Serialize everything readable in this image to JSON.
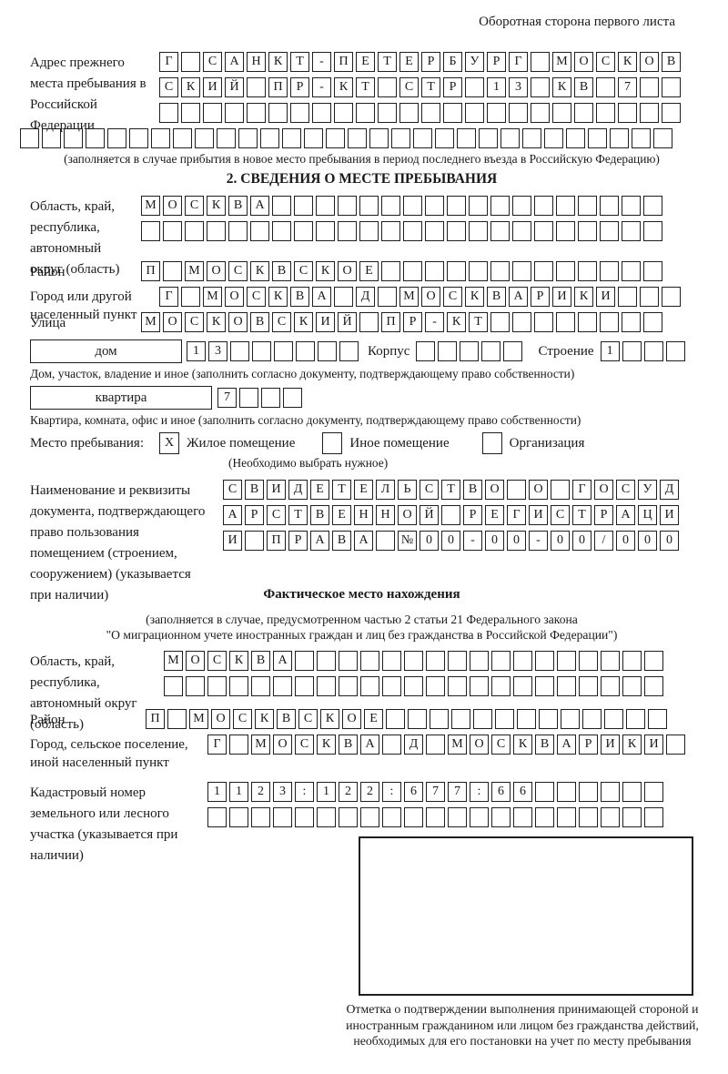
{
  "ink_color": "#1a1a1a",
  "header": {
    "back_side_note": "Оборотная сторона первого листа"
  },
  "prev_address": {
    "label": "Адрес прежнего места пребывания в Российской Федерации",
    "rows": [
      {
        "cells": "Г САНКТ-ПЕТЕРБУРГ МОСКОВ",
        "count": 24
      },
      {
        "cells": "СКИЙ ПР-КТ СТР 13 КВ 7",
        "count": 24
      },
      {
        "cells": "",
        "count": 24
      },
      {
        "cells": "",
        "count": 30
      }
    ],
    "note": "(заполняется в случае прибытия в новое место пребывания в период последнего въезда в Российскую Федерацию)"
  },
  "section2": {
    "title": "2. СВЕДЕНИЯ О МЕСТЕ ПРЕБЫВАНИЯ",
    "region": {
      "label": "Область, край, республика, автономный округ (область)",
      "rows": [
        {
          "cells": "МОСКВА",
          "count": 24
        },
        {
          "cells": "",
          "count": 24
        }
      ]
    },
    "district": {
      "label": "Район",
      "row": {
        "cells": "П МОСКВСКОЕ",
        "count": 24
      }
    },
    "city": {
      "label": "Город или другой населенный пункт",
      "row": {
        "cells": "Г МОСКВА Д МОСКВАРИКИ",
        "count": 24
      }
    },
    "street": {
      "label": "Улица",
      "row": {
        "cells": "МОСКОВСКИЙ ПР-КТ",
        "count": 24
      }
    },
    "house": {
      "label": "дом",
      "row": {
        "cells": "13",
        "count": 8
      }
    },
    "building": {
      "label": "Корпус",
      "row": {
        "cells": "",
        "count": 5
      }
    },
    "structure": {
      "label": "Строение",
      "row": {
        "cells": "1",
        "count": 4
      }
    },
    "house_note": "Дом, участок, владение и иное (заполнить согласно документу, подтверждающему право собственности)",
    "apartment": {
      "label": "квартира",
      "row": {
        "cells": "7",
        "count": 4
      }
    },
    "apartment_note": "Квартира, комната, офис и иное (заполнить согласно документу, подтверждающему право собственности)",
    "stay_place": {
      "label": "Место пребывания:",
      "options": [
        {
          "label": "Жилое помещение",
          "mark": "X"
        },
        {
          "label": "Иное помещение",
          "mark": ""
        },
        {
          "label": "Организация",
          "mark": ""
        }
      ],
      "note": "(Необходимо выбрать нужное)"
    },
    "document": {
      "label": "Наименование и реквизиты документа, подтверждающего право пользования помещением (строением, сооружением) (указывается при наличии)",
      "rows": [
        {
          "cells": "СВИДЕТЕЛЬСТВО О ГОСУД",
          "count": 21
        },
        {
          "cells": "АРСТВЕННОЙ РЕГИСТРАЦИ",
          "count": 21
        },
        {
          "cells": "И ПРАВА №00-00-00/000",
          "count": 21
        }
      ]
    }
  },
  "actual_location": {
    "title": "Фактическое место нахождения",
    "note_line1": "(заполняется в случае, предусмотренном частью 2 статьи 21 Федерального закона",
    "note_line2": "\"О миграционном учете иностранных граждан и лиц без гражданства в Российской Федерации\")",
    "region": {
      "label": "Область, край, республика, автономный округ (область)",
      "rows": [
        {
          "cells": "МОСКВА",
          "count": 23
        },
        {
          "cells": "",
          "count": 23
        }
      ]
    },
    "district": {
      "label": "Район",
      "row": {
        "cells": "П МОСКВСКОЕ",
        "count": 24
      }
    },
    "city": {
      "label": "Город, сельское поселение, иной населенный пункт",
      "row": {
        "cells": "Г МОСКВА Д МОСКВАРИКИ",
        "count": 22
      }
    },
    "cadastral": {
      "label": "Кадастровый номер земельного или лесного участка (указывается при наличии)",
      "rows": [
        {
          "cells": "1123:122:677:66",
          "count": 21
        },
        {
          "cells": "",
          "count": 21
        }
      ]
    }
  },
  "stamp": {
    "note": "Отметка о подтверждении выполнения принимающей стороной и иностранным гражданином или лицом без гражданства действий, необходимых для его постановки на учет по месту пребывания"
  }
}
